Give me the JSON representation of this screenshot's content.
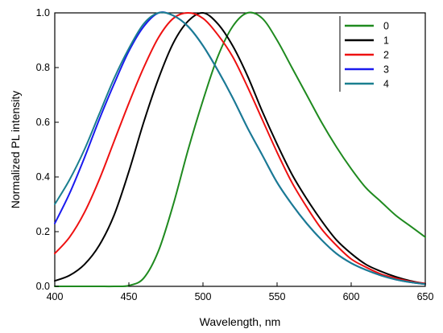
{
  "chart_data": {
    "type": "line",
    "title": "",
    "xlabel": "Wavelength, nm",
    "ylabel": "Normalized PL intensity",
    "xlim": [
      400,
      650
    ],
    "ylim": [
      0,
      1.0
    ],
    "x_ticks": [
      400,
      450,
      500,
      550,
      600,
      650
    ],
    "y_ticks": [
      0.0,
      0.2,
      0.4,
      0.6,
      0.8,
      1.0
    ],
    "x_tick_labels": [
      "400",
      "450",
      "500",
      "550",
      "600",
      "650"
    ],
    "y_tick_labels": [
      "0.0",
      "0.2",
      "0.4",
      "0.6",
      "0.8",
      "1.0"
    ],
    "grid": false,
    "legend_position": "top-right",
    "x": [
      400,
      410,
      420,
      430,
      440,
      450,
      460,
      470,
      480,
      490,
      500,
      510,
      520,
      530,
      540,
      550,
      560,
      570,
      580,
      590,
      600,
      610,
      620,
      630,
      640,
      650
    ],
    "series": [
      {
        "name": "0",
        "color": "#1f8a1f",
        "values": [
          0.0,
          0.0,
          0.0,
          0.0,
          0.0,
          0.003,
          0.03,
          0.13,
          0.3,
          0.5,
          0.68,
          0.84,
          0.95,
          1.0,
          0.98,
          0.9,
          0.8,
          0.7,
          0.6,
          0.51,
          0.43,
          0.36,
          0.31,
          0.26,
          0.22,
          0.18
        ]
      },
      {
        "name": "1",
        "color": "#000000",
        "values": [
          0.02,
          0.04,
          0.08,
          0.15,
          0.26,
          0.42,
          0.6,
          0.76,
          0.89,
          0.97,
          1.0,
          0.96,
          0.88,
          0.77,
          0.64,
          0.52,
          0.41,
          0.32,
          0.24,
          0.17,
          0.12,
          0.08,
          0.055,
          0.035,
          0.02,
          0.01
        ]
      },
      {
        "name": "2",
        "color": "#ee1111",
        "values": [
          0.12,
          0.18,
          0.27,
          0.39,
          0.53,
          0.67,
          0.8,
          0.91,
          0.98,
          1.0,
          0.98,
          0.92,
          0.84,
          0.73,
          0.61,
          0.49,
          0.38,
          0.29,
          0.21,
          0.15,
          0.1,
          0.07,
          0.045,
          0.03,
          0.018,
          0.01
        ]
      },
      {
        "name": "3",
        "color": "#1a1aee",
        "values": [
          0.23,
          0.34,
          0.47,
          0.61,
          0.74,
          0.86,
          0.95,
          1.0,
          0.99,
          0.95,
          0.88,
          0.79,
          0.69,
          0.58,
          0.48,
          0.38,
          0.3,
          0.23,
          0.17,
          0.12,
          0.085,
          0.06,
          0.04,
          0.025,
          0.015,
          0.008
        ]
      },
      {
        "name": "4",
        "color": "#1a7f8f",
        "values": [
          0.3,
          0.39,
          0.5,
          0.63,
          0.76,
          0.87,
          0.96,
          1.0,
          0.99,
          0.95,
          0.88,
          0.79,
          0.69,
          0.58,
          0.48,
          0.38,
          0.3,
          0.23,
          0.17,
          0.12,
          0.085,
          0.06,
          0.04,
          0.025,
          0.015,
          0.008
        ]
      }
    ]
  }
}
